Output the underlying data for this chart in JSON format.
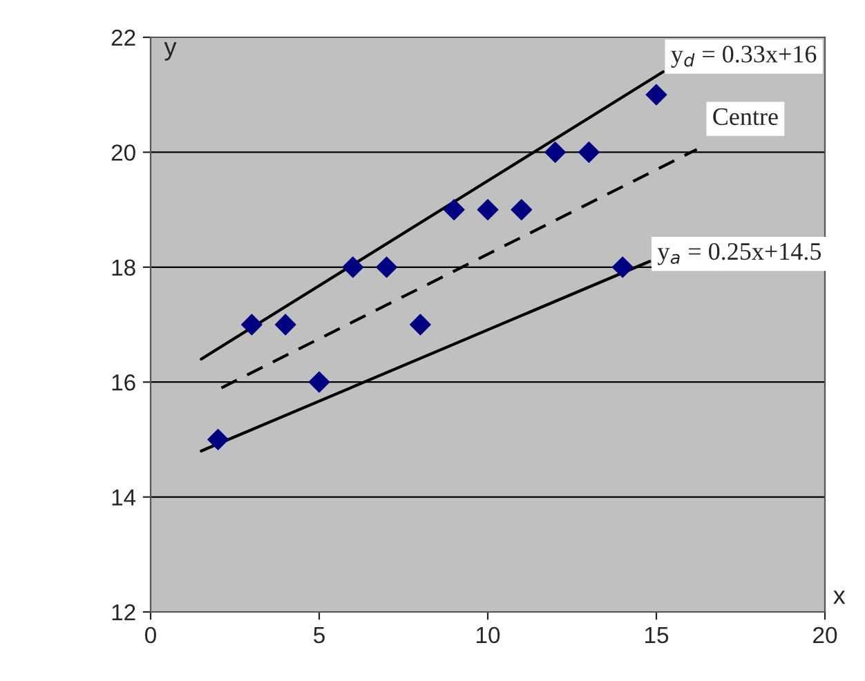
{
  "chart_data": {
    "type": "scatter",
    "xlabel": "x",
    "ylabel": "y",
    "xlim": [
      0,
      20
    ],
    "xticks": [
      0,
      5,
      10,
      15,
      20
    ],
    "ylim": [
      12,
      22
    ],
    "yticks": [
      12,
      14,
      16,
      18,
      20,
      22
    ],
    "grid": "y",
    "legend": false,
    "series": [
      {
        "marker": "diamond",
        "color": "#000080",
        "x": [
          2,
          3,
          4,
          5,
          6,
          7,
          8,
          9,
          10,
          11,
          12,
          13,
          14,
          15
        ],
        "values": [
          15,
          17,
          17,
          16,
          18,
          18,
          17,
          19,
          19,
          19,
          20,
          20,
          18,
          21
        ]
      },
      {
        "type": "line",
        "marker": "none",
        "color": "#000000",
        "line_style": "solid",
        "x": [
          1.5,
          15.2
        ],
        "values": [
          16.4,
          21.4
        ]
      },
      {
        "type": "line",
        "marker": "none",
        "color": "#000000",
        "line_style": "dashed",
        "x": [
          2.1,
          16.2
        ],
        "values": [
          15.9,
          20.05
        ]
      },
      {
        "type": "line",
        "marker": "none",
        "color": "#000000",
        "line_style": "solid",
        "x": [
          1.5,
          14.8
        ],
        "values": [
          14.8,
          18.1
        ]
      }
    ],
    "annotations": [
      {
        "text": "y$_{d}$ = 0.33x+16",
        "x": 15.2,
        "y": 21.4
      },
      {
        "text": "Centre",
        "x": 16.2,
        "y": 20.05
      },
      {
        "text": "y$_{a}$ = 0.25x+14.5",
        "x": 14.8,
        "y": 18.1
      }
    ]
  }
}
